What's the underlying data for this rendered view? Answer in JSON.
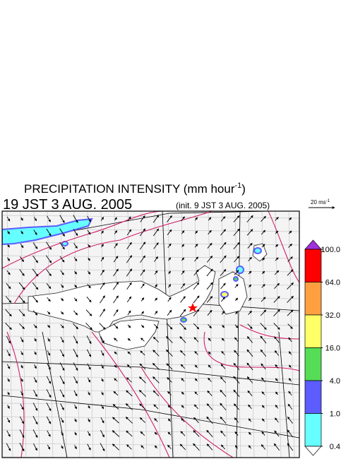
{
  "header": {
    "title": {
      "text": "PRECIPITATION INTENSITY (mm hour",
      "superscript": "-1",
      "suffix": ")"
    },
    "time": "19 JST 3 AUG. 2005",
    "init": "(init. 9 JST 3 AUG. 2005)"
  },
  "wind_scale": {
    "text": "20 ms",
    "superscript": "-1"
  },
  "colorbar": {
    "ticks": [
      {
        "value": 100,
        "label": "100.0"
      },
      {
        "value": 64,
        "label": "64.0"
      },
      {
        "value": 32,
        "label": "32.0"
      },
      {
        "value": 16,
        "label": "16.0"
      },
      {
        "value": 4,
        "label": "4.0"
      },
      {
        "value": 1,
        "label": "1.0"
      },
      {
        "value": 0.4,
        "label": "0.4"
      }
    ],
    "colors": [
      "#ff0000",
      "#ffa040",
      "#ffff66",
      "#55dd55",
      "#5c5cff",
      "#66ffff"
    ],
    "over_color": "#a030e0",
    "under_color": "#ffffff"
  }
}
